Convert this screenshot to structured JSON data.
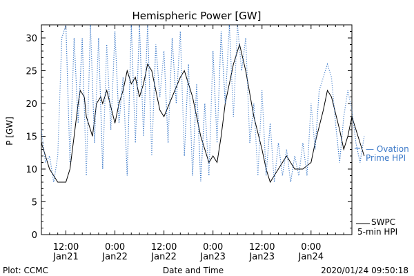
{
  "chart_data": {
    "type": "line",
    "title": "Hemispheric Power [GW]",
    "ylabel": "P [GW]",
    "xlabel": "Date and Time",
    "ylim": [
      0,
      32
    ],
    "yticks": [
      0,
      5,
      10,
      15,
      20,
      25,
      30
    ],
    "xlim": [
      "2020-01-21 06:00",
      "2020-01-24 10:00"
    ],
    "xticks": [
      {
        "t": "2020-01-21 12:00",
        "line1": "12:00",
        "line2": "Jan21"
      },
      {
        "t": "2020-01-22 00:00",
        "line1": "0:00",
        "line2": "Jan22"
      },
      {
        "t": "2020-01-22 12:00",
        "line1": "12:00",
        "line2": "Jan22"
      },
      {
        "t": "2020-01-23 00:00",
        "line1": "0:00",
        "line2": "Jan23"
      },
      {
        "t": "2020-01-23 12:00",
        "line1": "12:00",
        "line2": "Jan23"
      },
      {
        "t": "2020-01-24 00:00",
        "line1": "0:00",
        "line2": "Jan24"
      }
    ],
    "series": [
      {
        "name": "SWPC 5-min HPI",
        "color": "#000000",
        "style": "solid",
        "points": [
          [
            "2020-01-21 06:00",
            14
          ],
          [
            "2020-01-21 07:00",
            12
          ],
          [
            "2020-01-21 08:00",
            10
          ],
          [
            "2020-01-21 09:00",
            9
          ],
          [
            "2020-01-21 10:00",
            8
          ],
          [
            "2020-01-21 12:00",
            8
          ],
          [
            "2020-01-21 13:00",
            10
          ],
          [
            "2020-01-21 14:00",
            15
          ],
          [
            "2020-01-21 15:00",
            20
          ],
          [
            "2020-01-21 15:30",
            22
          ],
          [
            "2020-01-21 16:30",
            21
          ],
          [
            "2020-01-21 17:00",
            18
          ],
          [
            "2020-01-21 18:00",
            16
          ],
          [
            "2020-01-21 18:30",
            15
          ],
          [
            "2020-01-21 19:30",
            20
          ],
          [
            "2020-01-21 20:30",
            21
          ],
          [
            "2020-01-21 21:00",
            20
          ],
          [
            "2020-01-21 22:00",
            22
          ],
          [
            "2020-01-22 00:00",
            17
          ],
          [
            "2020-01-22 01:00",
            20
          ],
          [
            "2020-01-22 02:00",
            22
          ],
          [
            "2020-01-22 03:00",
            25
          ],
          [
            "2020-01-22 04:00",
            23
          ],
          [
            "2020-01-22 05:00",
            24
          ],
          [
            "2020-01-22 06:00",
            21
          ],
          [
            "2020-01-22 07:00",
            23
          ],
          [
            "2020-01-22 08:00",
            26
          ],
          [
            "2020-01-22 09:00",
            25
          ],
          [
            "2020-01-22 11:00",
            19
          ],
          [
            "2020-01-22 12:00",
            18
          ],
          [
            "2020-01-22 14:00",
            21
          ],
          [
            "2020-01-22 16:00",
            24
          ],
          [
            "2020-01-22 17:00",
            25
          ],
          [
            "2020-01-22 19:00",
            21
          ],
          [
            "2020-01-22 21:00",
            15
          ],
          [
            "2020-01-22 23:00",
            11
          ],
          [
            "2020-01-23 00:00",
            12
          ],
          [
            "2020-01-23 01:00",
            11
          ],
          [
            "2020-01-23 02:00",
            15
          ],
          [
            "2020-01-23 03:00",
            20
          ],
          [
            "2020-01-23 05:00",
            26
          ],
          [
            "2020-01-23 06:00",
            28
          ],
          [
            "2020-01-23 06:30",
            29
          ],
          [
            "2020-01-23 08:00",
            25
          ],
          [
            "2020-01-23 10:00",
            18
          ],
          [
            "2020-01-23 12:00",
            13
          ],
          [
            "2020-01-23 13:00",
            10
          ],
          [
            "2020-01-23 14:00",
            8
          ],
          [
            "2020-01-23 16:00",
            10
          ],
          [
            "2020-01-23 18:00",
            12
          ],
          [
            "2020-01-23 19:00",
            11
          ],
          [
            "2020-01-23 20:00",
            10
          ],
          [
            "2020-01-23 22:00",
            10
          ],
          [
            "2020-01-24 00:00",
            11
          ],
          [
            "2020-01-24 01:00",
            14
          ],
          [
            "2020-01-24 03:00",
            19
          ],
          [
            "2020-01-24 04:00",
            22
          ],
          [
            "2020-01-24 05:00",
            21
          ],
          [
            "2020-01-24 07:00",
            16
          ],
          [
            "2020-01-24 08:00",
            13
          ],
          [
            "2020-01-24 09:00",
            15
          ],
          [
            "2020-01-24 10:00",
            18
          ],
          [
            "2020-01-24 11:00",
            16
          ],
          [
            "2020-01-24 12:00",
            14
          ],
          [
            "2020-01-24 13:00",
            12
          ]
        ]
      },
      {
        "name": "Ovation Prime HPI",
        "color": "#3a78c8",
        "style": "dotted",
        "points": [
          [
            "2020-01-21 06:00",
            16
          ],
          [
            "2020-01-21 07:00",
            11
          ],
          [
            "2020-01-21 08:00",
            12
          ],
          [
            "2020-01-21 09:00",
            8
          ],
          [
            "2020-01-21 10:00",
            12
          ],
          [
            "2020-01-21 11:00",
            30
          ],
          [
            "2020-01-21 12:00",
            32
          ],
          [
            "2020-01-21 13:00",
            11
          ],
          [
            "2020-01-21 14:00",
            30
          ],
          [
            "2020-01-21 15:00",
            17
          ],
          [
            "2020-01-21 16:00",
            30
          ],
          [
            "2020-01-21 17:00",
            9
          ],
          [
            "2020-01-21 18:00",
            32
          ],
          [
            "2020-01-21 19:00",
            14
          ],
          [
            "2020-01-21 20:00",
            30
          ],
          [
            "2020-01-21 21:00",
            10
          ],
          [
            "2020-01-21 22:00",
            29
          ],
          [
            "2020-01-21 23:00",
            16
          ],
          [
            "2020-01-22 00:00",
            31
          ],
          [
            "2020-01-22 01:00",
            17
          ],
          [
            "2020-01-22 02:00",
            24
          ],
          [
            "2020-01-22 03:00",
            9
          ],
          [
            "2020-01-22 04:00",
            32
          ],
          [
            "2020-01-22 05:00",
            14
          ],
          [
            "2020-01-22 06:00",
            32
          ],
          [
            "2020-01-22 07:00",
            15
          ],
          [
            "2020-01-22 08:00",
            32
          ],
          [
            "2020-01-22 09:00",
            12
          ],
          [
            "2020-01-22 10:00",
            29
          ],
          [
            "2020-01-22 11:00",
            21
          ],
          [
            "2020-01-22 12:00",
            28
          ],
          [
            "2020-01-22 13:00",
            14
          ],
          [
            "2020-01-22 14:00",
            30
          ],
          [
            "2020-01-22 15:00",
            20
          ],
          [
            "2020-01-22 16:00",
            31
          ],
          [
            "2020-01-22 17:00",
            12
          ],
          [
            "2020-01-22 18:00",
            26
          ],
          [
            "2020-01-22 19:00",
            9
          ],
          [
            "2020-01-22 20:00",
            23
          ],
          [
            "2020-01-22 21:00",
            8
          ],
          [
            "2020-01-22 22:00",
            20
          ],
          [
            "2020-01-22 23:00",
            9
          ],
          [
            "2020-01-23 00:00",
            28
          ],
          [
            "2020-01-23 01:00",
            14
          ],
          [
            "2020-01-23 02:00",
            31
          ],
          [
            "2020-01-23 03:00",
            20
          ],
          [
            "2020-01-23 04:00",
            32
          ],
          [
            "2020-01-23 05:00",
            18
          ],
          [
            "2020-01-23 06:00",
            32
          ],
          [
            "2020-01-23 07:00",
            25
          ],
          [
            "2020-01-23 08:00",
            30
          ],
          [
            "2020-01-23 09:00",
            14
          ],
          [
            "2020-01-23 10:00",
            20
          ],
          [
            "2020-01-23 11:00",
            9
          ],
          [
            "2020-01-23 12:00",
            22
          ],
          [
            "2020-01-23 13:00",
            9
          ],
          [
            "2020-01-23 14:00",
            17
          ],
          [
            "2020-01-23 15:00",
            8
          ],
          [
            "2020-01-23 16:00",
            14
          ],
          [
            "2020-01-23 17:00",
            9
          ],
          [
            "2020-01-23 18:00",
            13
          ],
          [
            "2020-01-23 19:00",
            8
          ],
          [
            "2020-01-23 20:00",
            12
          ],
          [
            "2020-01-23 21:00",
            9
          ],
          [
            "2020-01-23 22:00",
            14
          ],
          [
            "2020-01-23 23:00",
            9
          ],
          [
            "2020-01-24 00:00",
            20
          ],
          [
            "2020-01-24 01:00",
            13
          ],
          [
            "2020-01-24 02:00",
            22
          ],
          [
            "2020-01-24 03:00",
            24
          ],
          [
            "2020-01-24 04:00",
            26
          ],
          [
            "2020-01-24 05:00",
            24
          ],
          [
            "2020-01-24 06:00",
            17
          ],
          [
            "2020-01-24 07:00",
            11
          ],
          [
            "2020-01-24 08:00",
            18
          ],
          [
            "2020-01-24 09:00",
            22
          ],
          [
            "2020-01-24 10:00",
            19
          ],
          [
            "2020-01-24 11:00",
            14
          ],
          [
            "2020-01-24 12:00",
            11
          ],
          [
            "2020-01-24 13:00",
            15
          ]
        ]
      }
    ],
    "legend_placement": "right",
    "legend": [
      {
        "series": "Ovation Prime HPI",
        "line1": "— Ovation",
        "line2": "Prime HPI",
        "color": "#3a78c8"
      },
      {
        "series": "SWPC 5-min HPI",
        "line1": "SWPC",
        "line2": "5-min HPI",
        "color": "#000000"
      }
    ]
  },
  "footer": {
    "left": "Plot: CCMC",
    "center": "Date and Time",
    "right": "2020/01/24 09:50:18"
  }
}
